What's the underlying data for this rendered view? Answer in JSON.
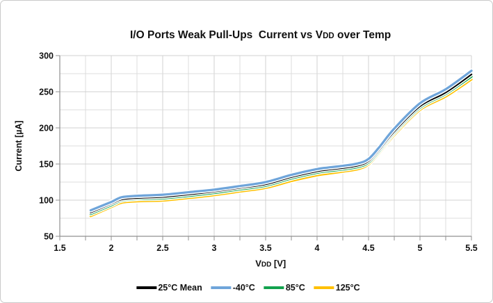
{
  "window": {
    "background": "#ffffff",
    "frame_border_color": "#c9c9c9"
  },
  "chart_data": {
    "type": "line",
    "title": {
      "part1": "I/O Ports Weak Pull-Ups  Current vs V",
      "subscript": "DD",
      "part2": " over Temp"
    },
    "x_axis": {
      "label_main": "V",
      "label_sub": "DD",
      "label_unit": " [V]",
      "min": 1.5,
      "max": 5.5,
      "major_step": 0.5,
      "minor_step": 0.25,
      "tick_labels": [
        "1.5",
        "2",
        "2.5",
        "3",
        "3.5",
        "4",
        "4.5",
        "5",
        "5.5"
      ]
    },
    "y_axis": {
      "label": "Current [µA]",
      "min": 50,
      "max": 300,
      "major_step": 50,
      "minor_step": 25,
      "tick_labels": [
        "50",
        "100",
        "150",
        "200",
        "250",
        "300"
      ]
    },
    "grid": {
      "minor_color": "#dcdcdc",
      "major_color": "#d0d0d0",
      "axis_color": "#909090",
      "tick_length": 6
    },
    "legend_position": "bottom",
    "x": [
      1.8,
      2.0,
      2.1,
      2.25,
      2.5,
      2.75,
      3.0,
      3.25,
      3.5,
      3.75,
      4.0,
      4.1,
      4.25,
      4.4,
      4.5,
      4.6,
      4.75,
      5.0,
      5.25,
      5.5
    ],
    "series": [
      {
        "name": "25°C Mean",
        "color": "#000000",
        "width": 2.4,
        "values": [
          83,
          95,
          101,
          103,
          104.5,
          108,
          112,
          117,
          122,
          132,
          140,
          142,
          144.5,
          148,
          154,
          169,
          195,
          230,
          249,
          274
        ]
      },
      {
        "name": "-40°C",
        "color": "#6fa5da",
        "width": 3.3,
        "values": [
          86,
          97.5,
          104,
          106,
          107.5,
          111,
          114.5,
          119.5,
          125,
          135,
          143,
          145,
          147.5,
          151,
          157,
          172.5,
          199,
          234,
          253.5,
          279
        ]
      },
      {
        "name": "85°C",
        "color": "#12a24d",
        "width": 3.3,
        "values": [
          81,
          93,
          99.5,
          101.5,
          102.5,
          106,
          110,
          115,
          120,
          130,
          138,
          140,
          142.5,
          146,
          152,
          167,
          193,
          228,
          247,
          271
        ]
      },
      {
        "name": "125°C",
        "color": "#ffc000",
        "width": 3.3,
        "values": [
          78,
          90.5,
          96.5,
          98.5,
          99.5,
          103,
          107,
          112,
          117,
          126.5,
          134.5,
          136.5,
          139.5,
          143,
          149.5,
          164.5,
          190,
          225,
          243.5,
          267
        ]
      }
    ],
    "draw_order": [
      3,
      2,
      0,
      1
    ]
  }
}
